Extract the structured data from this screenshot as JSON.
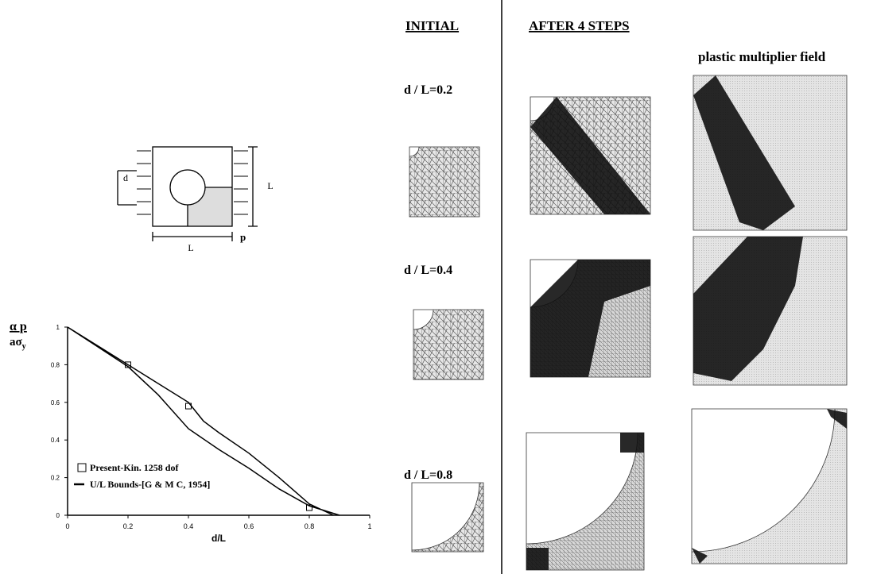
{
  "header": {
    "initial": "INITIAL",
    "after": "AFTER 4 STEPS",
    "field": "plastic multiplier field"
  },
  "rows": [
    "d / L=0.2",
    "d / L=0.4",
    "d / L=0.8"
  ],
  "diagram": {
    "d": "d",
    "L_side": "L",
    "L_bottom": "L",
    "p": "p"
  },
  "chart_data": {
    "type": "line",
    "ylabel_numerator": "α p",
    "ylabel_denominator": "aσ",
    "ylabel_subscript": "y",
    "xlabel": "d/L",
    "xlim": [
      0,
      1
    ],
    "ylim": [
      0,
      1
    ],
    "xticks": [
      0,
      0.2,
      0.4,
      0.6,
      0.8,
      1
    ],
    "yticks": [
      0,
      0.2,
      0.4,
      0.6,
      0.8,
      1
    ],
    "series": [
      {
        "name": "Present-Kin. 1258 dof",
        "color": "#000000",
        "marker": "square",
        "x": [
          0.2,
          0.4,
          0.8
        ],
        "values": [
          0.8,
          0.58,
          0.04
        ]
      },
      {
        "name": "U/L Bounds-[G & M C, 1954]",
        "color": "#000000",
        "x": [
          0,
          0.2,
          0.3,
          0.4,
          0.45,
          0.5,
          0.6,
          0.7,
          0.8,
          0.88,
          null,
          0,
          0.2,
          0.3,
          0.4,
          0.5,
          0.6,
          0.7,
          0.8,
          0.9
        ],
        "values": [
          1,
          0.8,
          0.7,
          0.6,
          0.5,
          0.44,
          0.33,
          0.2,
          0.06,
          0,
          null,
          1,
          0.79,
          0.64,
          0.46,
          0.35,
          0.25,
          0.14,
          0.05,
          0
        ]
      }
    ]
  }
}
